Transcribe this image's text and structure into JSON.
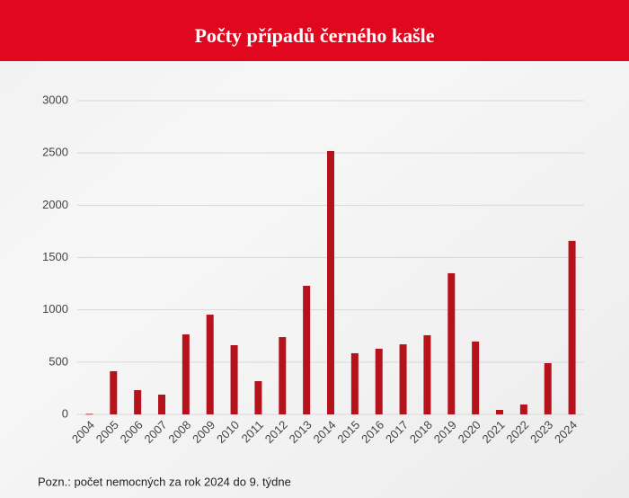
{
  "chart_data": {
    "type": "bar",
    "title": "Počty případů černého kašle",
    "categories": [
      "2004",
      "2005",
      "2006",
      "2007",
      "2008",
      "2009",
      "2010",
      "2011",
      "2012",
      "2013",
      "2014",
      "2015",
      "2016",
      "2017",
      "2018",
      "2019",
      "2020",
      "2021",
      "2022",
      "2023",
      "2024"
    ],
    "values": [
      5,
      413,
      232,
      189,
      765,
      954,
      662,
      318,
      739,
      1230,
      2519,
      585,
      628,
      670,
      757,
      1350,
      697,
      43,
      95,
      490,
      1660
    ],
    "color": "#b5121b",
    "ylim": [
      0,
      3000
    ],
    "yticks": [
      0,
      500,
      1000,
      1500,
      2000,
      2500,
      3000
    ],
    "grid": true,
    "note": "Pozn.: počet nemocných za rok 2024 do 9. týdne"
  }
}
